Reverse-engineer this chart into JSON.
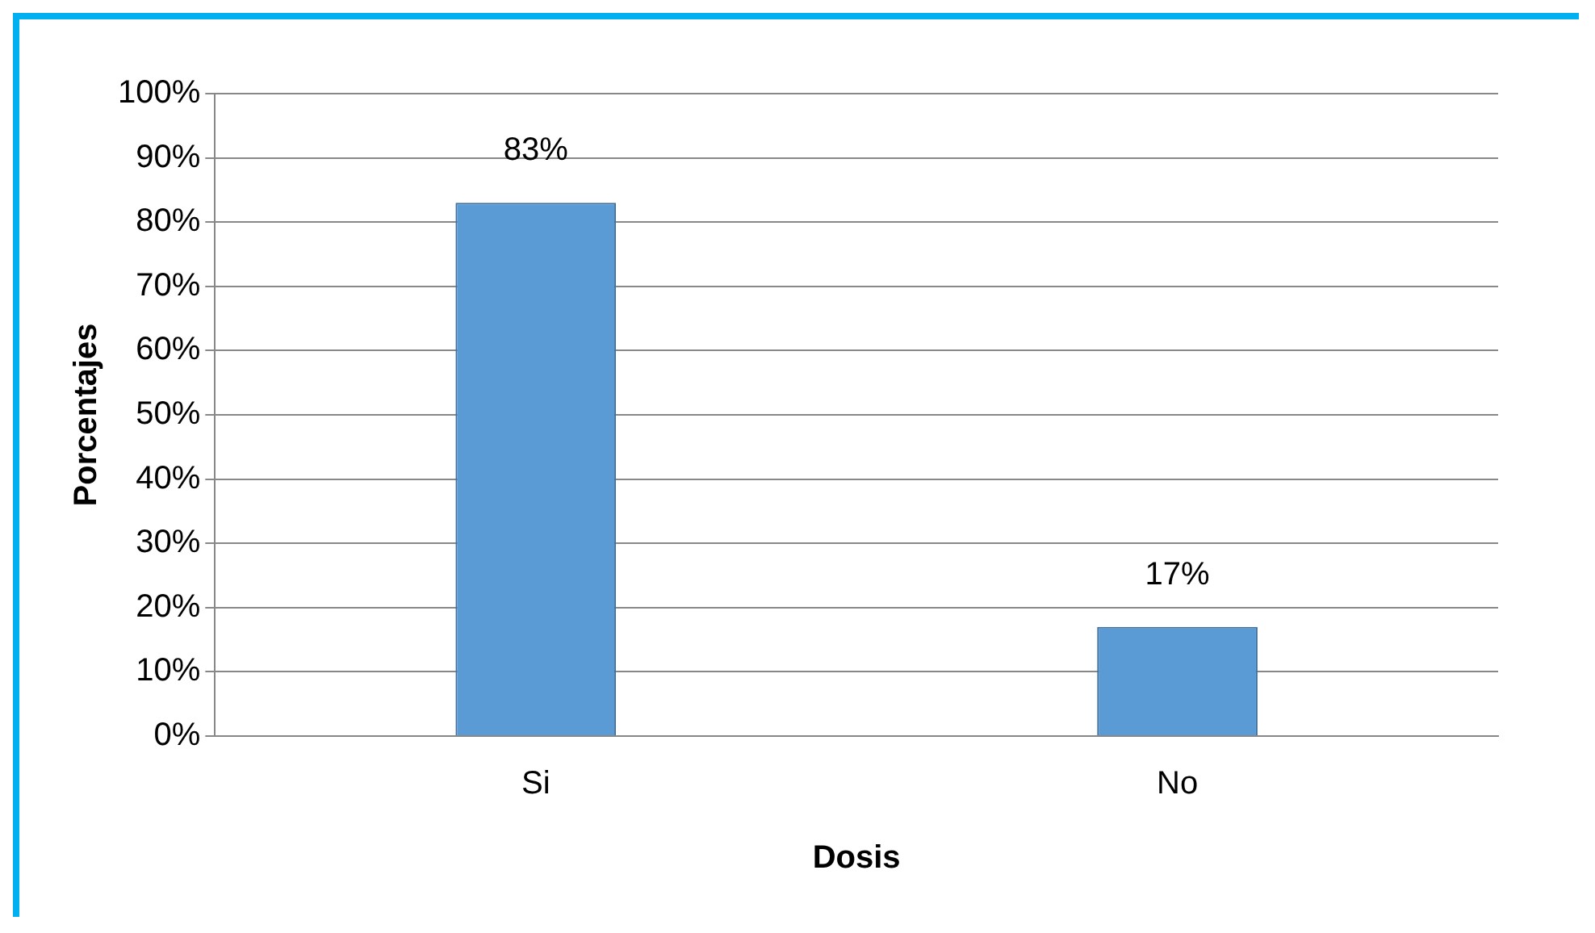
{
  "chart_data": {
    "type": "bar",
    "xlabel": "Dosis",
    "ylabel": "Porcentajes",
    "categories": [
      "Si",
      "No"
    ],
    "values": [
      83,
      17
    ],
    "color": "#5b9bd5",
    "value_labels": [
      "83%",
      "17%"
    ],
    "ylim": [
      0,
      100
    ],
    "yticks": [
      {
        "value": 0,
        "label": "0%"
      },
      {
        "value": 10,
        "label": "10%"
      },
      {
        "value": 20,
        "label": "20%"
      },
      {
        "value": 30,
        "label": "30%"
      },
      {
        "value": 40,
        "label": "40%"
      },
      {
        "value": 50,
        "label": "50%"
      },
      {
        "value": 60,
        "label": "60%"
      },
      {
        "value": 70,
        "label": "70%"
      },
      {
        "value": 80,
        "label": "80%"
      },
      {
        "value": 90,
        "label": "90%"
      },
      {
        "value": 100,
        "label": "100%"
      }
    ],
    "grid": "y"
  }
}
